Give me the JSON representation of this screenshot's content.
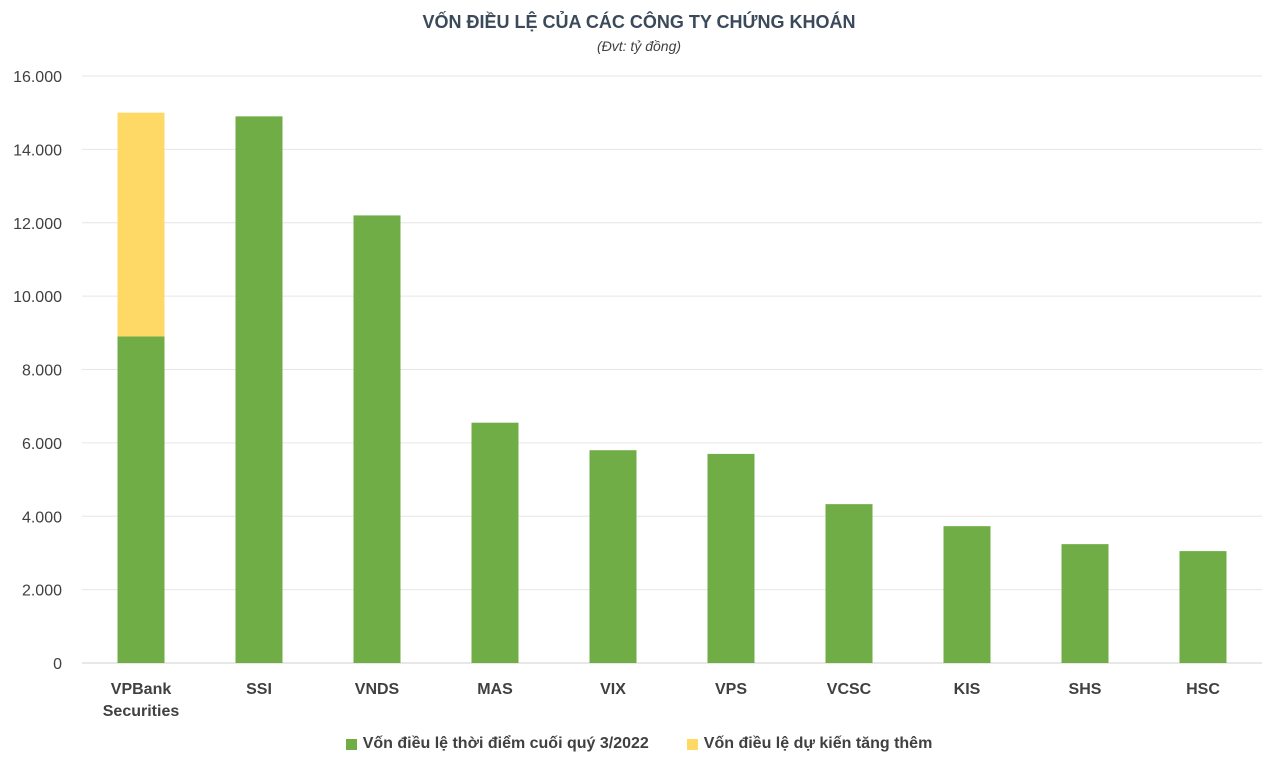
{
  "chart_data": {
    "type": "bar",
    "stacked": true,
    "title": "VỐN ĐIỀU LỆ CỦA CÁC CÔNG TY CHỨNG KHOÁN",
    "subtitle": "(Đvt: tỷ đồng)",
    "categories": [
      [
        "VPBank",
        "Securities"
      ],
      [
        "SSI"
      ],
      [
        "VNDS"
      ],
      [
        "MAS"
      ],
      [
        "VIX"
      ],
      [
        "VPS"
      ],
      [
        "VCSC"
      ],
      [
        "KIS"
      ],
      [
        "SHS"
      ],
      [
        "HSC"
      ]
    ],
    "series": [
      {
        "name": "Vốn điều lệ thời điểm cuối quý 3/2022",
        "color": "#70ad47",
        "values": [
          8900,
          14900,
          12200,
          6550,
          5800,
          5700,
          4330,
          3730,
          3240,
          3050
        ]
      },
      {
        "name": "Vốn điều lệ dự kiến tăng thêm",
        "color": "#ffd966",
        "values": [
          6100,
          0,
          0,
          0,
          0,
          0,
          0,
          0,
          0,
          0
        ]
      }
    ],
    "ylim": [
      0,
      16000
    ],
    "yticks": [
      "0",
      "2.000",
      "4.000",
      "6.000",
      "8.000",
      "10.000",
      "12.000",
      "14.000",
      "16.000"
    ],
    "ytick_values": [
      0,
      2000,
      4000,
      6000,
      8000,
      10000,
      12000,
      14000,
      16000
    ],
    "grid": true,
    "legend_position": "bottom"
  }
}
